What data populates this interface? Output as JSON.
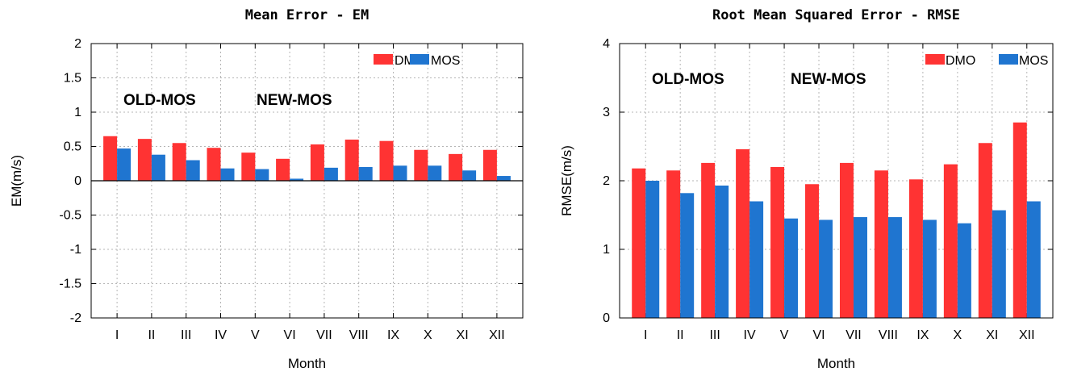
{
  "colors": {
    "DMO": "#ff3333",
    "MOS": "#1f75d0"
  },
  "chart_data": [
    {
      "type": "bar",
      "title": "Mean Error - EM",
      "xlabel": "Month",
      "ylabel": "EM(m/s)",
      "ylim": [
        -2,
        2
      ],
      "ytick_step": 0.5,
      "yticks": [
        "2",
        "1.5",
        "1",
        "0.5",
        "0",
        "-0.5",
        "-1",
        "-1.5",
        "-2"
      ],
      "categories": [
        "I",
        "II",
        "III",
        "IV",
        "V",
        "VI",
        "VII",
        "VIII",
        "IX",
        "X",
        "XI",
        "XII"
      ],
      "series": [
        {
          "name": "DMO",
          "values": [
            0.65,
            0.61,
            0.55,
            0.48,
            0.41,
            0.32,
            0.53,
            0.6,
            0.58,
            0.45,
            0.39,
            0.45
          ]
        },
        {
          "name": "MOS",
          "values": [
            0.47,
            0.38,
            0.3,
            0.18,
            0.17,
            0.03,
            0.19,
            0.2,
            0.22,
            0.22,
            0.15,
            0.07
          ]
        }
      ],
      "annotations": [
        "OLD-MOS",
        "NEW-MOS"
      ],
      "legend_position": "top-right",
      "grid": true
    },
    {
      "type": "bar",
      "title": "Root Mean Squared Error - RMSE",
      "xlabel": "Month",
      "ylabel": "RMSE(m/s)",
      "ylim": [
        0,
        4
      ],
      "ytick_step": 1,
      "yticks": [
        "4",
        "3",
        "2",
        "1",
        "0"
      ],
      "categories": [
        "I",
        "II",
        "III",
        "IV",
        "V",
        "VI",
        "VII",
        "VIII",
        "IX",
        "X",
        "XI",
        "XII"
      ],
      "series": [
        {
          "name": "DMO",
          "values": [
            2.18,
            2.15,
            2.26,
            2.46,
            2.2,
            1.95,
            2.26,
            2.15,
            2.02,
            2.24,
            2.55,
            2.85
          ]
        },
        {
          "name": "MOS",
          "values": [
            2.0,
            1.82,
            1.93,
            1.7,
            1.45,
            1.43,
            1.47,
            1.47,
            1.43,
            1.38,
            1.57,
            1.7
          ]
        }
      ],
      "annotations": [
        "OLD-MOS",
        "NEW-MOS"
      ],
      "legend_position": "top-right",
      "grid": true
    }
  ]
}
